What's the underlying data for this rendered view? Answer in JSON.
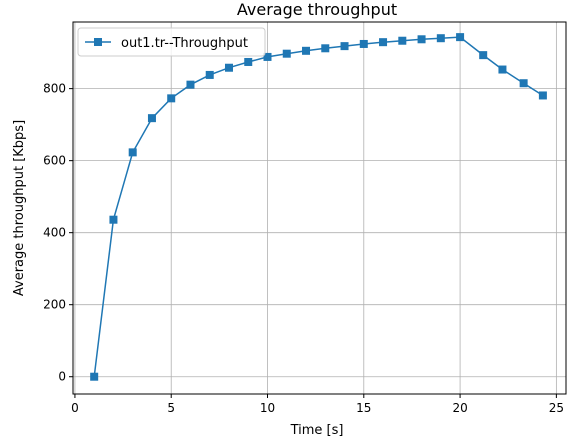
{
  "chart_data": {
    "type": "line",
    "title": "Average throughput",
    "xlabel": "Time [s]",
    "ylabel": "Average throughput [Kbps]",
    "xlim": [
      -0.1,
      25.5
    ],
    "ylim": [
      -48,
      985
    ],
    "xticks": [
      0,
      5,
      10,
      15,
      20,
      25
    ],
    "yticks": [
      0,
      200,
      400,
      600,
      800
    ],
    "grid": true,
    "legend_position": "top-left",
    "series": [
      {
        "name": "out1.tr--Throughput",
        "color": "#1f77b4",
        "marker": "square",
        "x": [
          1.0,
          2.0,
          3.0,
          4.0,
          5.0,
          6.0,
          7.0,
          8.0,
          9.0,
          10.0,
          11.0,
          12.0,
          13.0,
          14.0,
          15.0,
          16.0,
          17.0,
          18.0,
          19.0,
          20.0,
          21.2,
          22.2,
          23.3,
          24.3
        ],
        "y": [
          0,
          436,
          623,
          718,
          773,
          811,
          838,
          858,
          874,
          888,
          897,
          905,
          912,
          918,
          924,
          929,
          933,
          937,
          940,
          943,
          893,
          853,
          815,
          781
        ]
      }
    ]
  }
}
